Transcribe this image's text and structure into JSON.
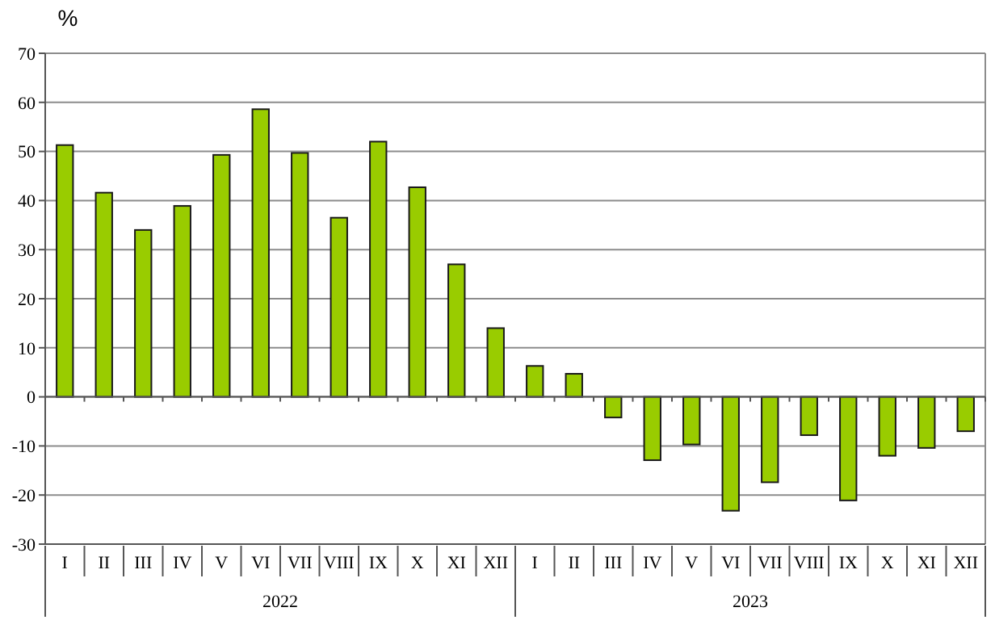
{
  "chart_data": {
    "type": "bar",
    "ylabel": "%",
    "categories": [
      "I",
      "II",
      "III",
      "IV",
      "V",
      "VI",
      "VII",
      "VIII",
      "IX",
      "X",
      "XI",
      "XII",
      "I",
      "II",
      "III",
      "IV",
      "V",
      "VI",
      "VII",
      "VIII",
      "IX",
      "X",
      "XI",
      "XII"
    ],
    "values": [
      51.3,
      41.6,
      34.0,
      38.9,
      49.3,
      58.6,
      49.7,
      36.5,
      52.0,
      42.7,
      27.0,
      14.0,
      6.3,
      4.7,
      -4.2,
      -12.9,
      -9.7,
      -23.2,
      -17.4,
      -7.8,
      -21.1,
      -12.0,
      -10.4,
      -7.0
    ],
    "color": "#99cc00",
    "ylim": [
      -30,
      70
    ],
    "yticks": [
      -30,
      -20,
      -10,
      0,
      10,
      20,
      30,
      40,
      50,
      60,
      70
    ],
    "grid": "y",
    "annotations": [
      "2022",
      "2023"
    ]
  }
}
